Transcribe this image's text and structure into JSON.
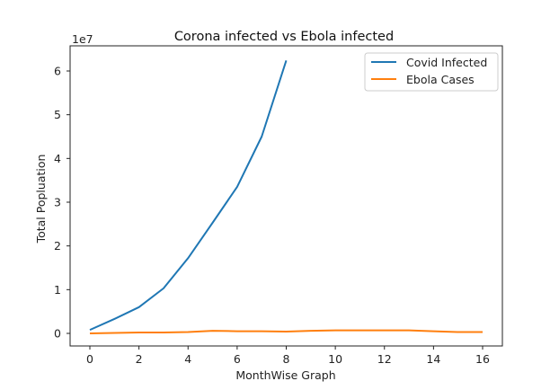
{
  "chart_data": {
    "type": "line",
    "title": "Corona infected vs Ebola infected",
    "xlabel": "MonthWise Graph",
    "ylabel": "Total Popluation",
    "y_offset_label": "1e7",
    "xlim": [
      -0.8,
      16.8
    ],
    "ylim": [
      -0.3,
      6.55
    ],
    "x_ticks": [
      0,
      2,
      4,
      6,
      8,
      10,
      12,
      14,
      16
    ],
    "y_ticks": [
      0,
      1,
      2,
      3,
      4,
      5,
      6
    ],
    "grid": false,
    "legend_position": "upper right",
    "series": [
      {
        "name": "Covid Infected",
        "color": "#1f77b4",
        "x": [
          0,
          1,
          2,
          3,
          4,
          5,
          6,
          7,
          8
        ],
        "values": [
          0.08,
          0.33,
          0.6,
          1.03,
          1.72,
          2.53,
          3.35,
          4.5,
          6.24
        ]
      },
      {
        "name": "Ebola Cases",
        "color": "#ff7f0e",
        "x": [
          0,
          1,
          2,
          3,
          4,
          5,
          6,
          7,
          8,
          9,
          10,
          11,
          12,
          13,
          14,
          15,
          16
        ],
        "values": [
          0.0,
          0.01,
          0.02,
          0.02,
          0.03,
          0.06,
          0.05,
          0.05,
          0.04,
          0.06,
          0.07,
          0.07,
          0.07,
          0.07,
          0.05,
          0.03,
          0.03
        ]
      }
    ]
  }
}
